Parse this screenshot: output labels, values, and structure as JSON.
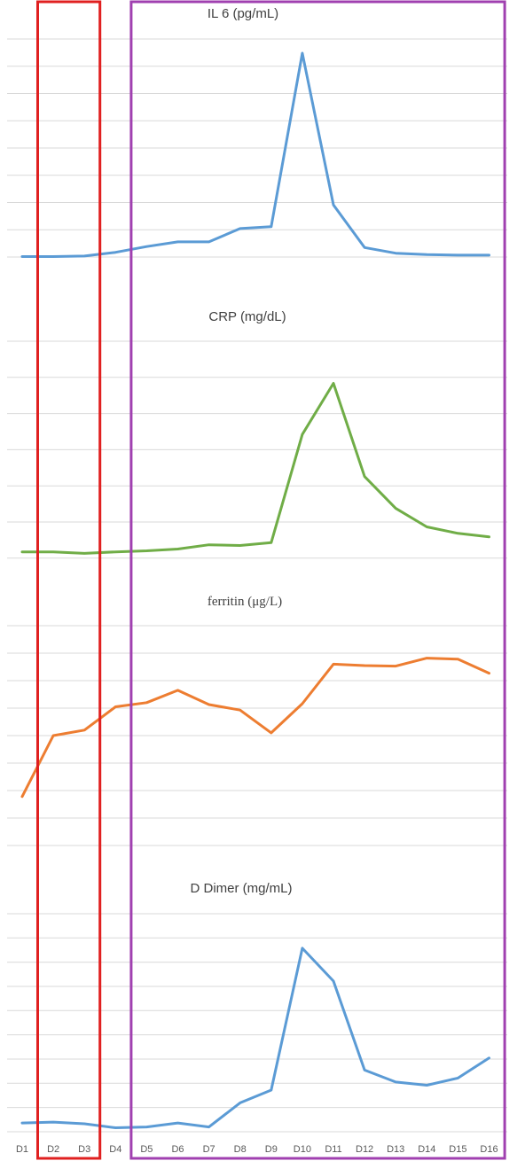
{
  "chart_data": [
    {
      "type": "line",
      "title": "IL 6 (pg/mL)",
      "categories": [
        "D1",
        "D2",
        "D3",
        "D4",
        "D5",
        "D6",
        "D7",
        "D8",
        "D9",
        "D10",
        "D11",
        "D12",
        "D13",
        "D14",
        "D15",
        "D16"
      ],
      "series": [
        {
          "values": [
            1,
            1,
            2,
            10,
            22,
            32,
            32,
            60,
            64,
            430,
            110,
            20,
            8,
            5,
            4,
            4
          ],
          "color": "#5b9bd5"
        }
      ],
      "ylim": [
        0,
        460
      ],
      "grid": true
    },
    {
      "type": "line",
      "title": "CRP (mg/dL)",
      "categories": [
        "D1",
        "D2",
        "D3",
        "D4",
        "D5",
        "D6",
        "D7",
        "D8",
        "D9",
        "D10",
        "D11",
        "D12",
        "D13",
        "D14",
        "D15",
        "D16"
      ],
      "series": [
        {
          "values": [
            1.0,
            1.0,
            0.6,
            1.0,
            1.3,
            1.8,
            3.0,
            2.8,
            3.6,
            33.9,
            48.2,
            22.1,
            13.2,
            8.0,
            6.2,
            5.2
          ],
          "color": "#70ad47"
        }
      ],
      "ylim": [
        -0.8,
        60
      ],
      "grid": true
    },
    {
      "type": "line",
      "title": "ferritin (μg/L)",
      "categories": [
        "D1",
        "D2",
        "D3",
        "D4",
        "D5",
        "D6",
        "D7",
        "D8",
        "D9",
        "D10",
        "D11",
        "D12",
        "D13",
        "D14",
        "D15",
        "D16"
      ],
      "series": [
        {
          "values": [
            178,
            400,
            420,
            505,
            520,
            565,
            513,
            493,
            410,
            516,
            660,
            655,
            653,
            682,
            678,
            627
          ],
          "color": "#ed7d31"
        }
      ],
      "ylim": [
        0,
        800
      ],
      "grid": true
    },
    {
      "type": "line",
      "title": "D Dimer (mg/mL)",
      "categories": [
        "D1",
        "D2",
        "D3",
        "D4",
        "D5",
        "D6",
        "D7",
        "D8",
        "D9",
        "D10",
        "D11",
        "D12",
        "D13",
        "D14",
        "D15",
        "D16"
      ],
      "series": [
        {
          "values": [
            0.9,
            1.0,
            0.8,
            0.3,
            0.4,
            0.9,
            0.4,
            3.4,
            5.0,
            22.7,
            18.6,
            7.5,
            6.0,
            5.6,
            6.5,
            9.0
          ],
          "color": "#5b9bd5"
        }
      ],
      "ylim": [
        -0.2,
        27
      ],
      "grid": true
    }
  ],
  "highlights": [
    {
      "categories": [
        "D2",
        "D3"
      ],
      "color": "#e02020"
    },
    {
      "categories": [
        "D5",
        "D6",
        "D7",
        "D8",
        "D9",
        "D10",
        "D11",
        "D12",
        "D13",
        "D14",
        "D15",
        "D16"
      ],
      "color": "#a040b0"
    }
  ]
}
